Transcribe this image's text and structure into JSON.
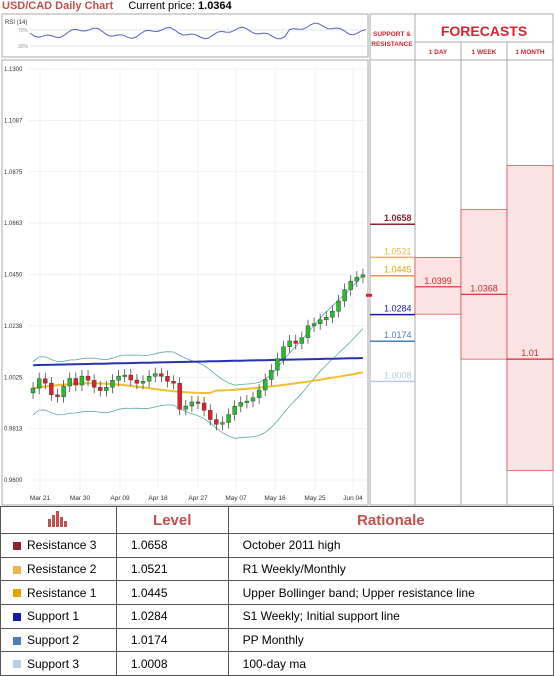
{
  "header": {
    "title": "USD/CAD Daily Chart",
    "current_price_label": "Current price:",
    "current_price": "1.0364"
  },
  "rsi": {
    "label": "RSI (14)",
    "level_high": "70%",
    "level_low": "30%"
  },
  "forecasts": {
    "title": "FORECASTS",
    "sr_header": "SUPPORT & RESISTANCE",
    "col_1day": "1 DAY",
    "col_1week": "1 WEEK",
    "col_1month": "1 MONTH",
    "val_1day": "1.0399",
    "val_1week": "1.0368",
    "val_1month": "1.01"
  },
  "colors": {
    "resistance3": "#8b2332",
    "resistance2": "#e8b84a",
    "resistance1": "#e5a400",
    "support1": "#1a1aa6",
    "support2": "#4a7fb5",
    "support3": "#b8cce4",
    "forecast_fill": "#fde4e4",
    "forecast_line": "#d9232d",
    "up_candle": "#2db82d",
    "down_candle": "#d9232d",
    "ma_blue": "#2633b0",
    "ma_yellow": "#f0c030",
    "bollinger": "#5fa8a8"
  },
  "chart_data": {
    "type": "candlestick",
    "title": "USD/CAD Daily Chart",
    "ylim": [
      0.96,
      1.13
    ],
    "y_ticks": [
      "1.1300",
      "1.1087",
      "1.0875",
      "1.0663",
      "1.0450",
      "1.0238",
      "1.0025",
      "0.9813",
      "0.9600"
    ],
    "x_ticks": [
      "Mar 21",
      "Mar 30",
      "Apr 09",
      "Apr 18",
      "Apr 27",
      "May 07",
      "May 16",
      "May 25",
      "Jun 04"
    ],
    "levels": [
      {
        "label": "1.0658",
        "value": 1.0658
      },
      {
        "label": "1.0521",
        "value": 1.0521
      },
      {
        "label": "1.0445",
        "value": 1.0445
      },
      {
        "label": "1.0284",
        "value": 1.0284
      },
      {
        "label": "1.0174",
        "value": 1.0174
      },
      {
        "label": "1.0008",
        "value": 1.0008
      }
    ],
    "forecast_ranges": {
      "day": [
        1.0286,
        1.0521
      ],
      "week": [
        1.01,
        1.0718
      ],
      "month": [
        0.964,
        1.09
      ]
    }
  },
  "table": {
    "headers": {
      "level": "Level",
      "rationale": "Rationale"
    },
    "rows": [
      {
        "name": "Resistance 3",
        "level": "1.0658",
        "rationale": "October 2011 high"
      },
      {
        "name": "Resistance 2",
        "level": "1.0521",
        "rationale": "R1 Weekly/Monthly"
      },
      {
        "name": "Resistance 1",
        "level": "1.0445",
        "rationale": "Upper Bollinger band; Upper resistance line"
      },
      {
        "name": "Support 1",
        "level": "1.0284",
        "rationale": "S1 Weekly; Initial support line"
      },
      {
        "name": "Support 2",
        "level": "1.0174",
        "rationale": "PP Monthly"
      },
      {
        "name": "Support 3",
        "level": "1.0008",
        "rationale": "100-day ma"
      }
    ]
  }
}
